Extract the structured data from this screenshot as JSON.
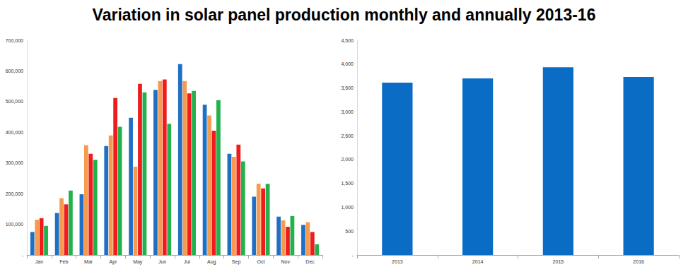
{
  "title": "Variation in solar panel production monthly and annually 2013-16",
  "chart_data": [
    {
      "type": "bar",
      "categories": [
        "Jan",
        "Feb",
        "Mar",
        "Apr",
        "May",
        "Jun",
        "Jul",
        "Aug",
        "Sep",
        "Oct",
        "Nov",
        "Dec"
      ],
      "series": [
        {
          "color": "#1f6fc5",
          "values": [
            75000,
            137000,
            198000,
            355000,
            447000,
            538000,
            622000,
            490000,
            330000,
            190000,
            125000,
            98000
          ]
        },
        {
          "color": "#f59a4f",
          "values": [
            115000,
            185000,
            358000,
            390000,
            288000,
            567000,
            567000,
            455000,
            320000,
            232000,
            113000,
            107000
          ]
        },
        {
          "color": "#ee1c1c",
          "values": [
            120000,
            165000,
            330000,
            512000,
            558000,
            572000,
            527000,
            405000,
            360000,
            217000,
            92000,
            75000
          ]
        },
        {
          "color": "#22b14c",
          "values": [
            95000,
            210000,
            310000,
            418000,
            530000,
            428000,
            535000,
            505000,
            305000,
            232000,
            127000,
            35000
          ]
        }
      ],
      "ylim": [
        0,
        700000
      ],
      "yticks": [
        {
          "value": 0,
          "label": "-"
        },
        {
          "value": 100000,
          "label": "100,000"
        },
        {
          "value": 200000,
          "label": "200,000"
        },
        {
          "value": 300000,
          "label": "300,000"
        },
        {
          "value": 400000,
          "label": "400,000"
        },
        {
          "value": 500000,
          "label": "500,000"
        },
        {
          "value": 600000,
          "label": "600,000"
        },
        {
          "value": 700000,
          "label": "700,000"
        }
      ],
      "grid": false
    },
    {
      "type": "bar",
      "categories": [
        "2013",
        "2014",
        "2015",
        "2016"
      ],
      "values": [
        3610,
        3700,
        3935,
        3730
      ],
      "color": "#0a6cc4",
      "ylim": [
        0,
        4500
      ],
      "yticks": [
        {
          "value": 0,
          "label": "-"
        },
        500,
        {
          "value": 1000,
          "label": "1,000"
        },
        {
          "value": 1500,
          "label": "1,500"
        },
        {
          "value": 2000,
          "label": "2,000"
        },
        {
          "value": 2500,
          "label": "2,500"
        },
        {
          "value": 3000,
          "label": "3,000"
        },
        {
          "value": 3500,
          "label": "3,500"
        },
        {
          "value": 4000,
          "label": "4,000"
        },
        {
          "value": 4500,
          "label": "4,500"
        }
      ],
      "grid": false
    }
  ]
}
